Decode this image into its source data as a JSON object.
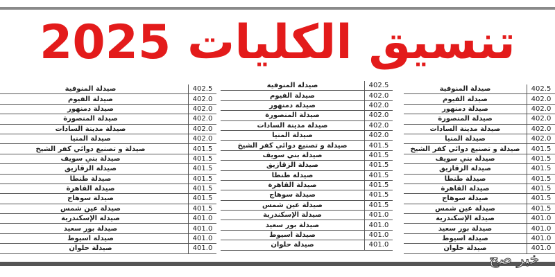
{
  "title": "تنسيق الكليات 2025",
  "watermark": "خبر صح",
  "rows": [
    {
      "name": "صيدلة المنوفية",
      "score": "402.5"
    },
    {
      "name": "صيدلة الفيوم",
      "score": "402.0"
    },
    {
      "name": "صيدلة دمنهور",
      "score": "402.0"
    },
    {
      "name": "صيدلة المنصورة",
      "score": "402.0"
    },
    {
      "name": "صيدلة مدينة السادات",
      "score": "402.0"
    },
    {
      "name": "صيدلة المنيا",
      "score": "402.0"
    },
    {
      "name": "صيدلة و تصنيع دوائي كفر الشيخ",
      "score": "401.5"
    },
    {
      "name": "صيدلة بني سويف",
      "score": "401.5"
    },
    {
      "name": "صيدلة الزقازيق",
      "score": "401.5"
    },
    {
      "name": "صيدلة طنطا",
      "score": "401.5"
    },
    {
      "name": "صيدلة القاهرة",
      "score": "401.5"
    },
    {
      "name": "صيدلة سوهاج",
      "score": "401.5"
    },
    {
      "name": "صيدلة عين شمس",
      "score": "401.5"
    },
    {
      "name": "صيدلة الإسكندرية",
      "score": "401.0"
    },
    {
      "name": "صيدلة بور سعيد",
      "score": "401.0"
    },
    {
      "name": "صيدلة أسيوط",
      "score": "401.0"
    },
    {
      "name": "صيدلة حلوان",
      "score": "401.0"
    }
  ]
}
